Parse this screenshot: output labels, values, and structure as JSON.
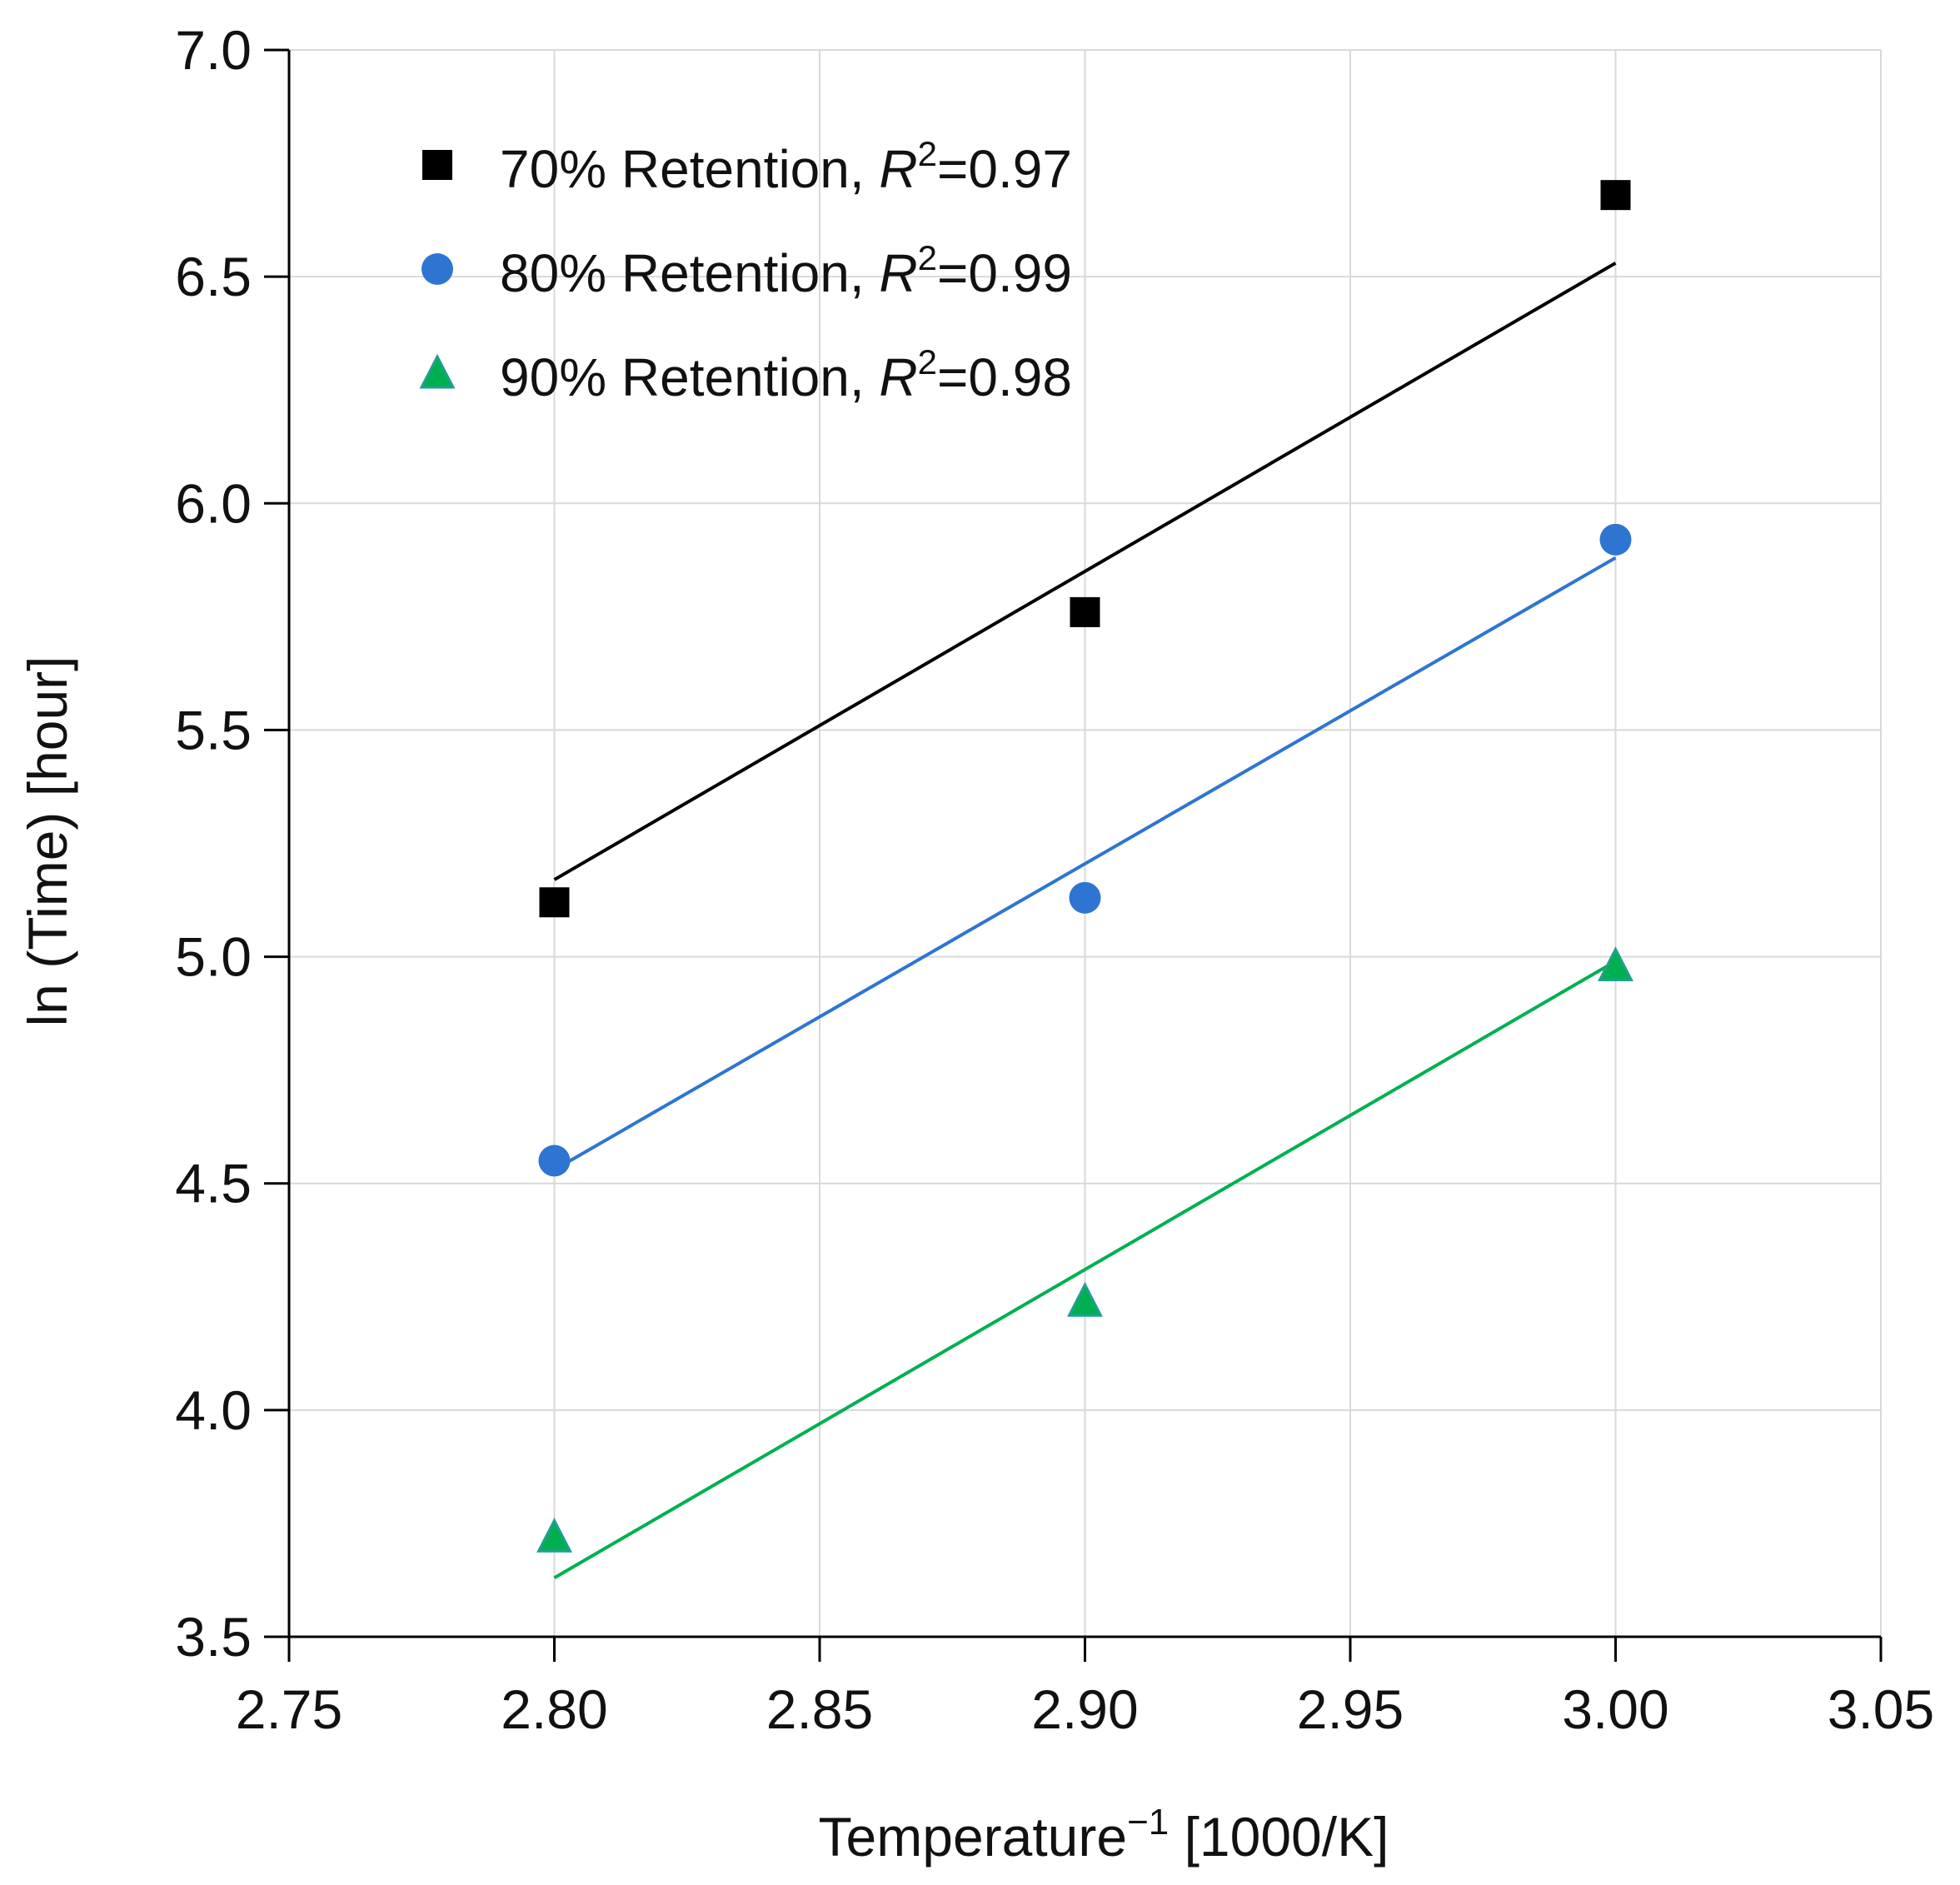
{
  "chart_data": {
    "type": "scatter",
    "title": "",
    "xlabel": {
      "main": "Temperature",
      "sup": "−1",
      "unit": " [1000/K]"
    },
    "ylabel": "ln (Time) [hour]",
    "xlim": [
      2.75,
      3.05
    ],
    "ylim": [
      3.5,
      7.0
    ],
    "xticks": [
      2.75,
      2.8,
      2.85,
      2.9,
      2.95,
      3.0,
      3.05
    ],
    "xtick_labels": [
      "2.75",
      "2.80",
      "2.85",
      "2.90",
      "2.95",
      "3.00",
      "3.05"
    ],
    "yticks": [
      3.5,
      4.0,
      4.5,
      5.0,
      5.5,
      6.0,
      6.5,
      7.0
    ],
    "ytick_labels": [
      "3.5",
      "4.0",
      "4.5",
      "5.0",
      "5.5",
      "6.0",
      "6.5",
      "7.0"
    ],
    "grid": true,
    "legend_position": "top-left",
    "series": [
      {
        "name": "70% Retention",
        "legend_prefix": "70% Retention, ",
        "r_symbol": "R",
        "r_sup": "2",
        "r_value": "=0.97",
        "marker": "square",
        "color": "#000000",
        "x": [
          2.8,
          2.9,
          3.0
        ],
        "y": [
          5.12,
          5.76,
          6.68
        ],
        "fit": {
          "x": [
            2.8,
            3.0
          ],
          "y": [
            5.17,
            6.53
          ]
        }
      },
      {
        "name": "80% Retention",
        "legend_prefix": "80% Retention, ",
        "r_symbol": "R",
        "r_sup": "2",
        "r_value": "=0.99",
        "marker": "circle",
        "color": "#2e75d1",
        "x": [
          2.8,
          2.9,
          3.0
        ],
        "y": [
          4.55,
          5.13,
          5.92
        ],
        "fit": {
          "x": [
            2.8,
            3.0
          ],
          "y": [
            4.53,
            5.88
          ]
        }
      },
      {
        "name": "90% Retention",
        "legend_prefix": "90% Retention, ",
        "r_symbol": "R",
        "r_sup": "2",
        "r_value": "=0.98",
        "marker": "triangle",
        "color": "#00b050",
        "edge_color": "#1f9f8f",
        "x": [
          2.8,
          2.9,
          3.0
        ],
        "y": [
          3.72,
          4.24,
          4.98
        ],
        "fit": {
          "x": [
            2.8,
            3.0
          ],
          "y": [
            3.63,
            4.99
          ]
        }
      }
    ]
  }
}
